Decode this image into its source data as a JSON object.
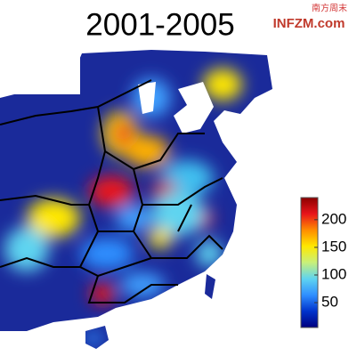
{
  "title": "2001-2005",
  "watermark": {
    "logo_text": "南方周末",
    "site": "INFZM.com"
  },
  "colorbar": {
    "lim": [
      5,
      240
    ],
    "ticks": [
      50,
      100,
      150,
      200
    ],
    "colors": [
      "#00007f",
      "#0033cc",
      "#2f8fff",
      "#5fd4f0",
      "#c8f07a",
      "#ffe800",
      "#ff8c00",
      "#e8141a",
      "#8b0000"
    ]
  }
}
